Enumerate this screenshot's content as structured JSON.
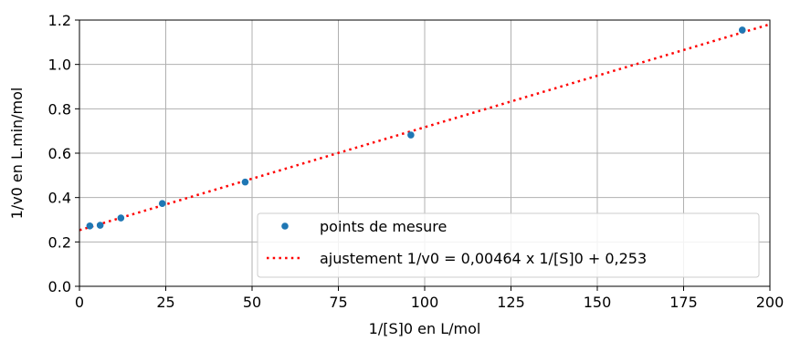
{
  "chart_data": {
    "type": "scatter",
    "xlabel": "1/[S]0 en L/mol",
    "ylabel": "1/v0 en L.min/mol",
    "xlim": [
      0,
      200
    ],
    "ylim": [
      0,
      1.2
    ],
    "xticks": [
      0,
      25,
      50,
      75,
      100,
      125,
      150,
      175,
      200
    ],
    "yticks": [
      0.0,
      0.2,
      0.4,
      0.6,
      0.8,
      1.0,
      1.2
    ],
    "xtick_labels": [
      "0",
      "25",
      "50",
      "75",
      "100",
      "125",
      "150",
      "175",
      "200"
    ],
    "ytick_labels": [
      "0.0",
      "0.2",
      "0.4",
      "0.6",
      "0.8",
      "1.0",
      "1.2"
    ],
    "grid": true,
    "legend_position": "lower-right",
    "series": [
      {
        "name": "points de mesure",
        "kind": "points",
        "color": "#1f77b4",
        "x": [
          3,
          6,
          12,
          24,
          48,
          96,
          192
        ],
        "y": [
          0.272,
          0.275,
          0.308,
          0.373,
          0.47,
          0.682,
          1.155
        ]
      },
      {
        "name": "ajustement 1/v0 = 0,00464 x 1/[S]0 + 0,253",
        "kind": "fit-line",
        "color": "#ff0000",
        "slope": 0.00464,
        "intercept": 0.253,
        "x_range": [
          0,
          200
        ]
      }
    ]
  }
}
